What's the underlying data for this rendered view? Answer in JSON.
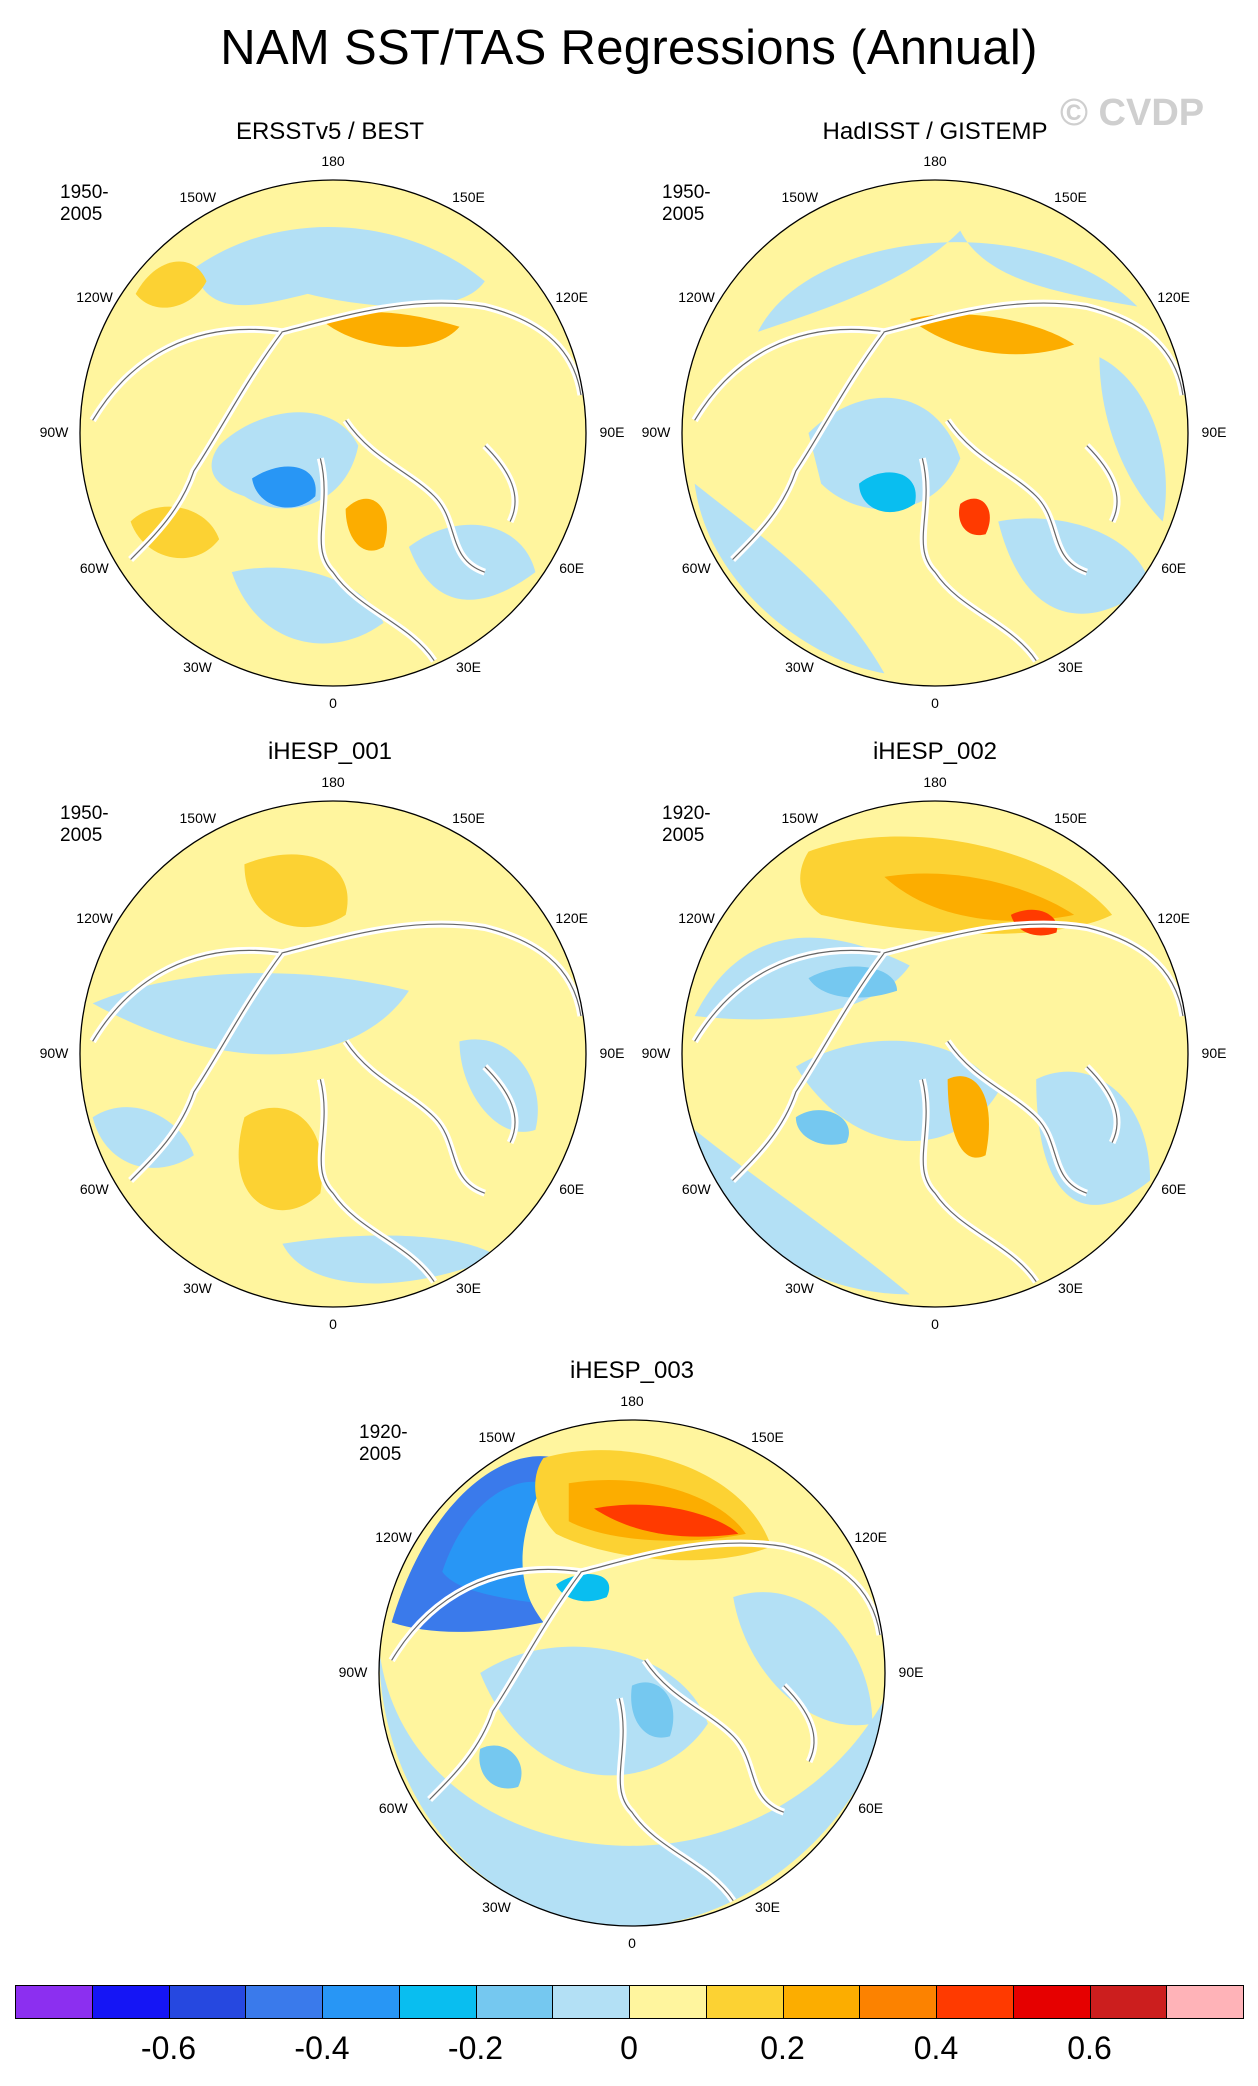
{
  "title": "NAM SST/TAS Regressions (Annual)",
  "watermark": "© CVDP",
  "panels": [
    {
      "name": "ERSSTv5 / BEST",
      "period": "1950-2005"
    },
    {
      "name": "HadISST / GISTEMP",
      "period": "1950-2005"
    },
    {
      "name": "iHESP_001",
      "period": "1950-2005"
    },
    {
      "name": "iHESP_002",
      "period": "1920-2005"
    },
    {
      "name": "iHESP_003",
      "period": "1920-2005"
    }
  ],
  "lon_labels": {
    "top": "180",
    "bottom": "0",
    "left": "90W",
    "right": "90E",
    "ul1": "150W",
    "ul2": "120W",
    "ur1": "150E",
    "ur2": "120E",
    "ll1": "60W",
    "ll2": "30W",
    "lr1": "60E",
    "lr2": "30E"
  },
  "colorbar": {
    "colors": [
      "#8c2ff0",
      "#1515f5",
      "#2648e0",
      "#3a7aeb",
      "#2896f5",
      "#09bef0",
      "#75c8f0",
      "#b3e0f5",
      "#fff59e",
      "#fcd233",
      "#fcad00",
      "#fc8200",
      "#ff3a00",
      "#e60000",
      "#cc1e1e",
      "#ffb3b8"
    ],
    "labels": [
      "-0.6",
      "-0.4",
      "-0.2",
      "0",
      "0.2",
      "0.4",
      "0.6"
    ]
  }
}
